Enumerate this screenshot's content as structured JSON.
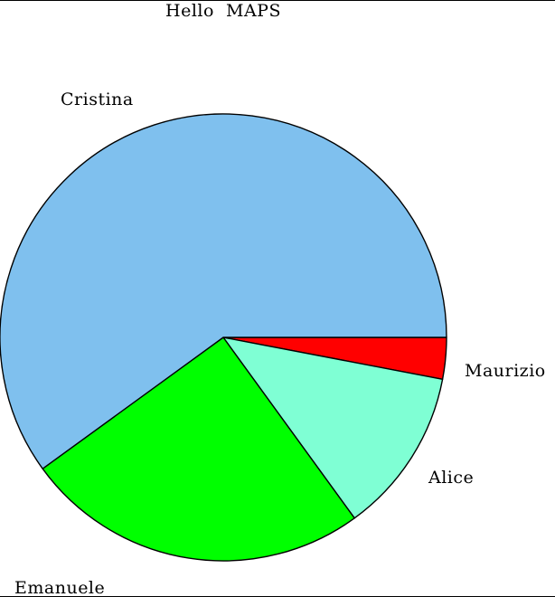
{
  "chart_data": {
    "type": "pie",
    "title": "Hello  MAPS",
    "labels": [
      "Maurizio",
      "Alice",
      "Emanuele",
      "Cristina"
    ],
    "values": [
      3,
      12,
      25,
      60
    ],
    "colors": [
      "#ff0000",
      "#7fffd4",
      "#00ff00",
      "#7fc0ee"
    ],
    "start_angle_deg": 0,
    "direction": "clockwise",
    "legend": "none",
    "grid": false
  }
}
